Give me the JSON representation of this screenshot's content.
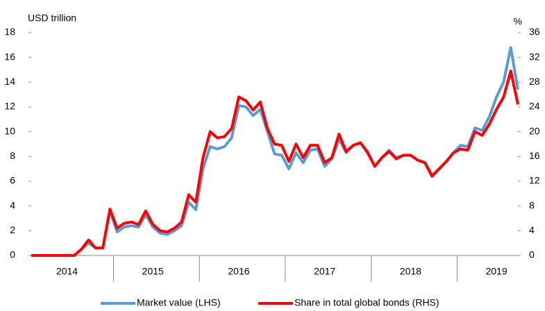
{
  "chart_data": {
    "type": "line",
    "y_label": "USD trillion",
    "y2_label": "%",
    "categories": [
      null,
      null,
      null,
      null,
      null,
      "2014",
      null,
      null,
      null,
      null,
      null,
      null,
      null,
      null,
      null,
      null,
      null,
      "2015",
      null,
      null,
      null,
      null,
      null,
      null,
      null,
      null,
      null,
      null,
      null,
      "2016",
      null,
      null,
      null,
      null,
      null,
      null,
      null,
      null,
      null,
      null,
      null,
      "2017",
      null,
      null,
      null,
      null,
      null,
      null,
      null,
      null,
      null,
      null,
      null,
      "2018",
      null,
      null,
      null,
      null,
      null,
      null,
      null,
      null,
      null,
      null,
      null,
      "2019",
      null,
      null,
      null
    ],
    "series": [
      {
        "name": "Market value (LHS)",
        "color": "#5b9bd5",
        "axis": "y",
        "values": [
          0,
          0,
          0,
          0,
          0,
          0,
          0,
          0.5,
          1.0,
          0.6,
          0.6,
          3.6,
          1.9,
          2.3,
          2.4,
          2.3,
          3.3,
          2.3,
          1.8,
          1.7,
          2.0,
          2.4,
          4.3,
          3.7,
          7.0,
          8.8,
          8.6,
          8.8,
          9.5,
          12.1,
          12.0,
          11.3,
          11.8,
          10.0,
          8.2,
          8.1,
          7.0,
          8.3,
          7.5,
          8.5,
          8.6,
          7.2,
          7.8,
          9.4,
          8.3,
          8.9,
          9.1,
          8.4,
          7.2,
          7.9,
          8.5,
          7.9,
          8.1,
          8.1,
          7.7,
          7.5,
          6.5,
          7.0,
          7.6,
          8.3,
          8.9,
          8.8,
          10.3,
          10.1,
          11.2,
          12.8,
          14.0,
          16.8,
          13.4
        ]
      },
      {
        "name": "Share in total global bonds (RHS)",
        "color": "#ff0000",
        "axis": "y2",
        "values": [
          0,
          0,
          0,
          0,
          0,
          0,
          0,
          1.0,
          2.5,
          1.2,
          1.2,
          7.5,
          4.4,
          5.2,
          5.4,
          5.0,
          7.2,
          5.0,
          4.0,
          3.8,
          4.4,
          5.4,
          9.8,
          8.6,
          15.8,
          20.0,
          19.0,
          19.2,
          20.5,
          25.6,
          25.0,
          23.5,
          24.8,
          20.5,
          18.0,
          17.8,
          15.2,
          18.0,
          15.8,
          17.8,
          17.8,
          15.0,
          15.8,
          19.6,
          16.8,
          17.8,
          18.2,
          16.6,
          14.4,
          15.8,
          16.8,
          15.6,
          16.2,
          16.2,
          15.4,
          15.0,
          12.8,
          14.0,
          15.2,
          16.6,
          17.2,
          17.0,
          20.0,
          19.4,
          21.2,
          23.6,
          25.6,
          29.8,
          24.4
        ]
      }
    ],
    "ylim": [
      0,
      18
    ],
    "yticks": [
      0,
      2,
      4,
      6,
      8,
      10,
      12,
      14,
      16,
      18
    ],
    "y2lim": [
      0,
      36
    ],
    "y2ticks": [
      0,
      4,
      8,
      12,
      16,
      20,
      24,
      28,
      32,
      36
    ],
    "grid": false,
    "legend": "bottom"
  }
}
